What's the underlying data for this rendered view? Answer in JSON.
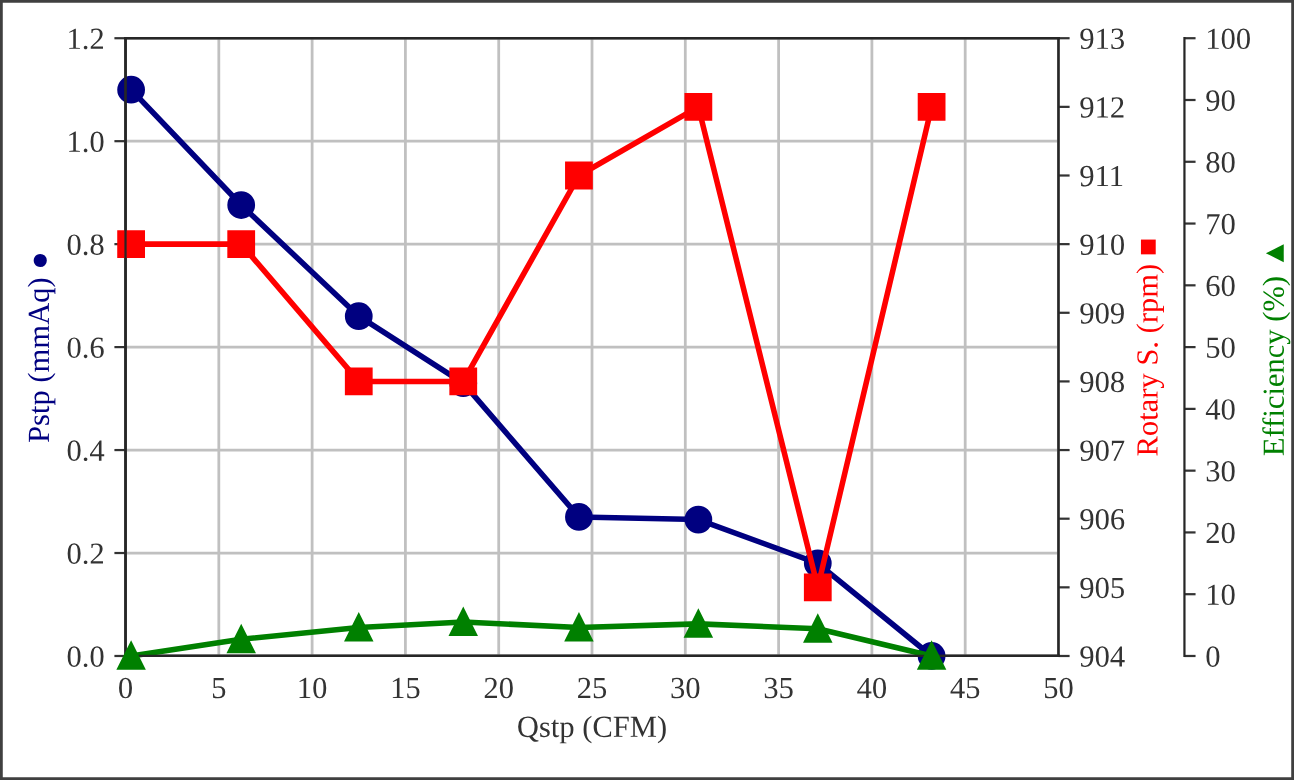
{
  "chart_data": {
    "type": "line",
    "xlabel": "Qstp (CFM)",
    "ylabel": "Pstp (mmAq) ●",
    "y2label": "Rotary S. (rpm) ■",
    "y3label": "Efficiency (%) ▲",
    "x": [
      0.3,
      6.2,
      12.5,
      18.1,
      24.3,
      30.7,
      37.1,
      43.2
    ],
    "series": [
      {
        "color": "#000080",
        "marker": "circle",
        "values": [
          1.1,
          0.876,
          0.66,
          0.53,
          0.27,
          0.265,
          0.18,
          0.0
        ]
      },
      {
        "color": "#ff0000",
        "marker": "square",
        "axis": "y2",
        "values": [
          910,
          910,
          908,
          908,
          911,
          912,
          905,
          912
        ]
      },
      {
        "color": "#008000",
        "marker": "triangle",
        "axis": "y3",
        "values": [
          0,
          2.7,
          4.6,
          5.5,
          4.6,
          5.2,
          4.4,
          0
        ]
      }
    ],
    "xlim": [
      0,
      50
    ],
    "xticks": [
      0,
      5,
      10,
      15,
      20,
      25,
      30,
      35,
      40,
      45,
      50
    ],
    "ylim": [
      0,
      1.2
    ],
    "yticks": [
      {
        "value": 0,
        "label": "0.0"
      },
      {
        "value": 0.2,
        "label": "0.2"
      },
      {
        "value": 0.4,
        "label": "0.4"
      },
      {
        "value": 0.6,
        "label": "0.6"
      },
      {
        "value": 0.8,
        "label": "0.8"
      },
      {
        "value": 1.0,
        "label": "1.0"
      },
      {
        "value": 1.2,
        "label": "1.2"
      }
    ],
    "y2lim": [
      904,
      913
    ],
    "y2ticks": [
      904,
      905,
      906,
      907,
      908,
      909,
      910,
      911,
      912,
      913
    ],
    "y3lim": [
      0,
      100
    ],
    "y3ticks": [
      0,
      10,
      20,
      30,
      40,
      50,
      60,
      70,
      80,
      90,
      100
    ],
    "grid": true,
    "legend": false,
    "line_style": "solid"
  }
}
